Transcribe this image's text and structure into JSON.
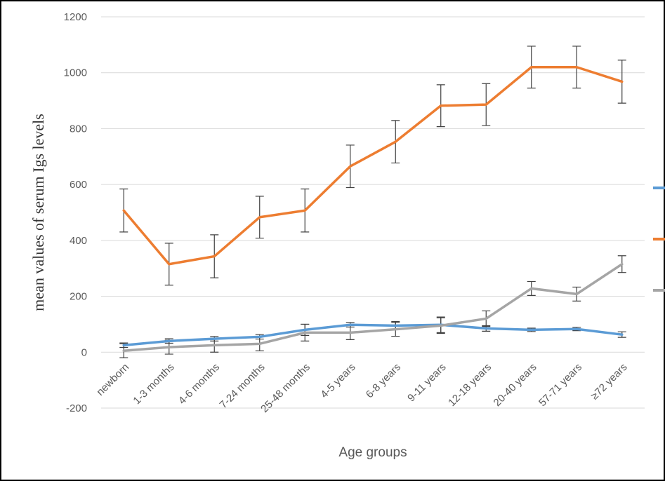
{
  "chart_data": {
    "type": "line",
    "x_label": "Age groups",
    "y_label": "mean values of serum Igs levels",
    "categories": [
      "newborn",
      "1-3 months",
      "4-6 months",
      "7-24 months",
      "25-48 months",
      "4-5 years",
      "6-8 years",
      "9-11 years",
      "12-18 years",
      "20-40 years",
      "57-71 years",
      "≥72 years"
    ],
    "series": [
      {
        "color": "#5b9bd5",
        "values": [
          25,
          40,
          48,
          55,
          80,
          98,
          95,
          98,
          85,
          80,
          83,
          63
        ],
        "errors": [
          8,
          8,
          8,
          8,
          20,
          8,
          15,
          28,
          10,
          6,
          6,
          10
        ]
      },
      {
        "color": "#ed7d31",
        "values": [
          507,
          315,
          343,
          483,
          507,
          665,
          753,
          882,
          886,
          1020,
          1020,
          968
        ],
        "errors": [
          77,
          75,
          77,
          75,
          77,
          76,
          76,
          75,
          75,
          75,
          75,
          77
        ]
      },
      {
        "color": "#a5a5a5",
        "values": [
          5,
          18,
          25,
          30,
          70,
          70,
          82,
          95,
          120,
          228,
          208,
          315
        ],
        "errors": [
          25,
          25,
          25,
          25,
          30,
          25,
          25,
          28,
          28,
          25,
          25,
          30
        ]
      }
    ],
    "ylim": [
      -200,
      1200
    ],
    "yticks": [
      -200,
      0,
      200,
      400,
      600,
      800,
      1000,
      1200
    ],
    "grid": true
  }
}
